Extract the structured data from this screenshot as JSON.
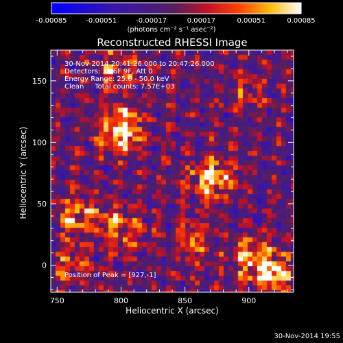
{
  "colorbar": {
    "tick_labels": [
      "-0.00085",
      "-0.00051",
      "-0.00017",
      "0.00017",
      "0.00051",
      "0.00085"
    ],
    "unit_label": "(photons cm⁻² s⁻¹ asec⁻²)"
  },
  "chart_data": {
    "type": "heatmap",
    "title": "Reconstructed RHESSI Image",
    "xlabel": "Heliocentric X (arcsec)",
    "ylabel": "Heliocentric Y (arcsec)",
    "xlim": [
      745,
      935
    ],
    "ylim": [
      -22,
      175
    ],
    "x_ticks": [
      "750",
      "800",
      "850",
      "900"
    ],
    "y_ticks": [
      "0",
      "50",
      "100",
      "150"
    ],
    "value_range": [
      -0.00085,
      0.00085
    ],
    "colormap": "rhessi-blue-purple-red-yellow-white",
    "peaks": [
      {
        "x": 800,
        "y": 110,
        "strength": 1.0,
        "sigma": 12
      },
      {
        "x": 870,
        "y": 70,
        "strength": 0.8,
        "sigma": 12
      },
      {
        "x": 765,
        "y": 40,
        "strength": 0.55,
        "sigma": 12
      },
      {
        "x": 800,
        "y": 30,
        "strength": 0.55,
        "sigma": 12
      },
      {
        "x": 795,
        "y": 160,
        "strength": 0.45,
        "sigma": 12
      },
      {
        "x": 855,
        "y": 20,
        "strength": 0.5,
        "sigma": 10
      },
      {
        "x": 905,
        "y": 5,
        "strength": 0.75,
        "sigma": 12
      },
      {
        "x": 920,
        "y": -10,
        "strength": 0.7,
        "sigma": 10
      },
      {
        "x": 760,
        "y": 0,
        "strength": 0.4,
        "sigma": 10
      },
      {
        "x": 900,
        "y": 140,
        "strength": 0.35,
        "sigma": 10
      }
    ],
    "annotations": [
      "30-Nov-2014 20:41:26.000 to 20:47:26.000",
      "Detectors: 3F 6F 9F, Att 0",
      "Energy Range: 25.0 - 50.0 keV",
      "Clean     Total counts: 7.57E+03"
    ],
    "peak_label": "Position of Peak = [927,-1]"
  },
  "footer": {
    "timestamp": "30-Nov-2014 19:55"
  }
}
